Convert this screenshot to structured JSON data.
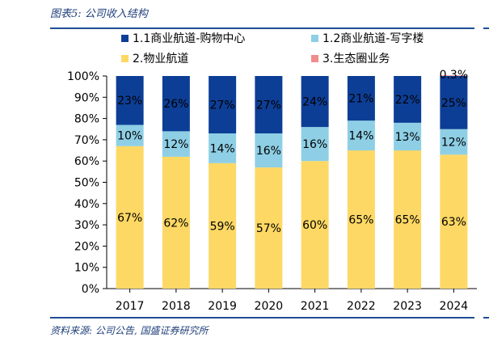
{
  "figure": {
    "title": "图表5:  公司收入结构",
    "source": "资料来源:  公司公告,  国盛证券研究所"
  },
  "colors": {
    "rule": "#1f4e96",
    "title": "#1f3f7a"
  },
  "chart_data": {
    "type": "bar",
    "stacked": true,
    "title": "",
    "xlabel": "",
    "ylabel": "",
    "categories": [
      "2017",
      "2018",
      "2019",
      "2020",
      "2021",
      "2022",
      "2023",
      "2024"
    ],
    "ylim": [
      0,
      100
    ],
    "yticks": [
      "0%",
      "10%",
      "20%",
      "30%",
      "40%",
      "50%",
      "60%",
      "70%",
      "80%",
      "90%",
      "100%"
    ],
    "legend_position": "top",
    "grid": false,
    "series": [
      {
        "name": "2.物业航道",
        "color": "#fdd864",
        "values": [
          67,
          62,
          59,
          57,
          60,
          65,
          65,
          63
        ],
        "labels": [
          "67%",
          "62%",
          "59%",
          "57%",
          "60%",
          "65%",
          "65%",
          "63%"
        ]
      },
      {
        "name": "1.2商业航道-写字楼",
        "color": "#8ecfe5",
        "values": [
          10,
          12,
          14,
          16,
          16,
          14,
          13,
          12
        ],
        "labels": [
          "10%",
          "12%",
          "14%",
          "16%",
          "16%",
          "14%",
          "13%",
          "12%"
        ]
      },
      {
        "name": "1.1商业航道-购物中心",
        "color": "#0d3e96",
        "values": [
          23,
          26,
          27,
          27,
          24,
          21,
          22,
          25
        ],
        "labels": [
          "23%",
          "26%",
          "27%",
          "27%",
          "24%",
          "21%",
          "22%",
          "25%"
        ]
      },
      {
        "name": "3.生态圈业务",
        "color": "#f08c8c",
        "values": [
          0,
          0,
          0,
          0,
          0,
          0,
          0,
          0.3
        ],
        "labels": [
          "",
          "",
          "",
          "",
          "",
          "",
          "",
          "0.3%"
        ]
      }
    ],
    "legend_order": [
      "1.1商业航道-购物中心",
      "1.2商业航道-写字楼",
      "2.物业航道",
      "3.生态圈业务"
    ]
  }
}
